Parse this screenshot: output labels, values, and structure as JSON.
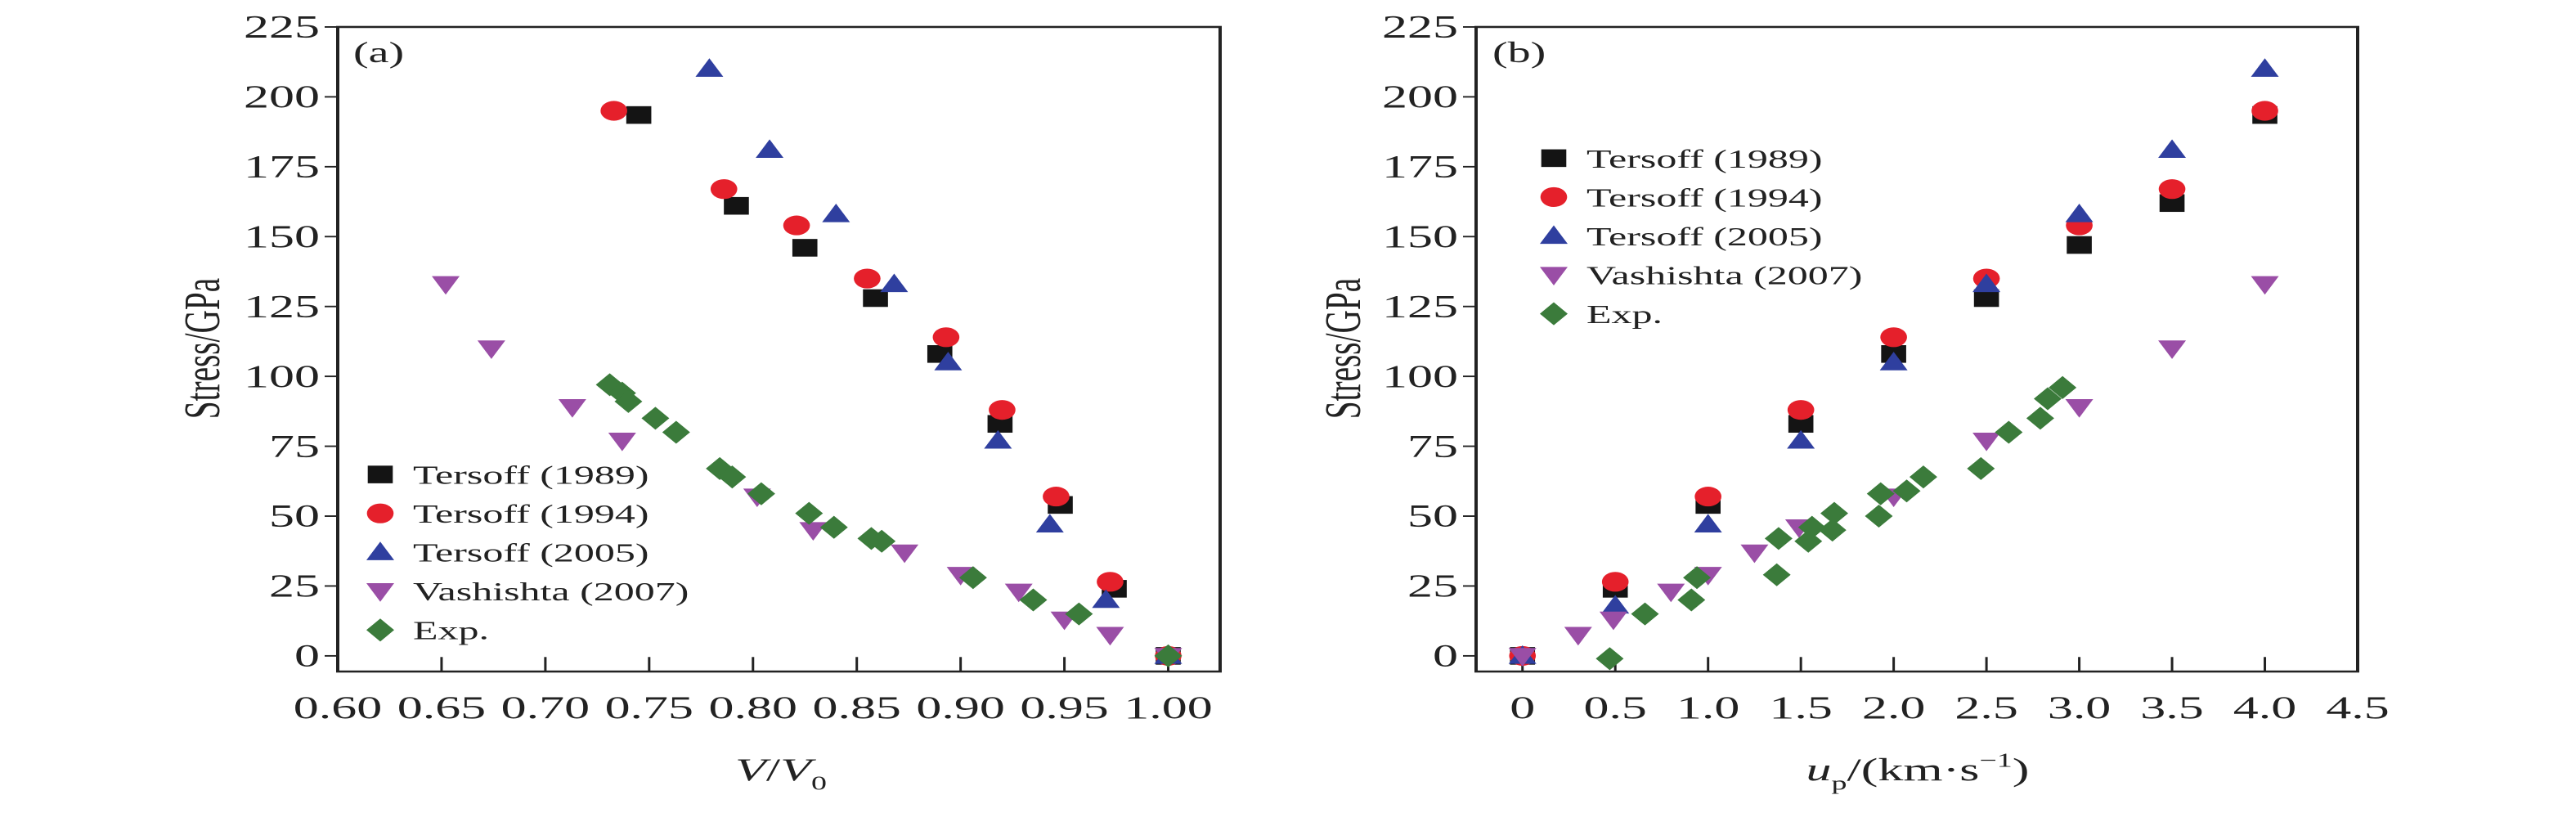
{
  "colors": {
    "Tersoff (1989)": "#141414",
    "Tersoff (1994)": "#e5202b",
    "Tersoff (2005)": "#2f3f9f",
    "Vashishta (2007)": "#9a4ea6",
    "Exp.": "#3b7b3b"
  },
  "markers": {
    "Tersoff (1989)": "square",
    "Tersoff (1994)": "circle",
    "Tersoff (2005)": "triangle-up",
    "Vashishta (2007)": "triangle-down",
    "Exp.": "diamond"
  },
  "chart_data": [
    {
      "type": "scatter",
      "panel_label": "(a)",
      "xlabel_main": "V",
      "xlabel_sep": "/",
      "xlabel_v": "V",
      "xlabel_sub": "0",
      "ylabel": "Stress/GPa",
      "xlim": [
        0.6,
        1.025
      ],
      "ylim": [
        -5.6,
        225
      ],
      "xticks": [
        "0.60",
        "0.65",
        "0.70",
        "0.75",
        "0.80",
        "0.85",
        "0.90",
        "0.95",
        "1.00"
      ],
      "yticks": [
        "0",
        "25",
        "50",
        "75",
        "100",
        "125",
        "150",
        "175",
        "200",
        "225"
      ],
      "legend_position": "lower-left",
      "series": [
        {
          "name": "Tersoff (1989)",
          "x": [
            0.745,
            0.792,
            0.825,
            0.859,
            0.89,
            0.919,
            0.948,
            0.974,
            1.0
          ],
          "y": [
            193.5,
            161,
            146,
            128,
            108,
            83,
            54,
            24,
            0
          ]
        },
        {
          "name": "Tersoff (1994)",
          "x": [
            0.733,
            0.786,
            0.821,
            0.855,
            0.893,
            0.92,
            0.946,
            0.972,
            1.0
          ],
          "y": [
            195,
            167,
            154,
            135,
            114,
            88,
            57,
            26.5,
            0
          ]
        },
        {
          "name": "Tersoff (2005)",
          "x": [
            0.779,
            0.808,
            0.84,
            0.868,
            0.894,
            0.918,
            0.943,
            0.97,
            1.0
          ],
          "y": [
            210,
            181,
            158,
            133,
            105,
            77,
            47,
            20,
            0
          ]
        },
        {
          "name": "Vashishta (2007)",
          "x": [
            0.652,
            0.674,
            0.713,
            0.737,
            0.802,
            0.829,
            0.873,
            0.9,
            0.928,
            0.95,
            0.972,
            1.0
          ],
          "y": [
            133,
            110,
            89,
            77,
            57,
            45,
            37,
            29,
            23,
            13,
            7.5,
            0
          ]
        },
        {
          "name": "Exp.",
          "x": [
            0.731,
            0.737,
            0.74,
            0.753,
            0.763,
            0.784,
            0.79,
            0.804,
            0.827,
            0.839,
            0.857,
            0.862,
            0.906,
            0.935,
            0.957,
            1.0
          ],
          "y": [
            97,
            94,
            91,
            85,
            80,
            67,
            64,
            58,
            51,
            46,
            42,
            41,
            28,
            20,
            15,
            0
          ]
        }
      ]
    },
    {
      "type": "scatter",
      "panel_label": "(b)",
      "xlabel_main": "u",
      "xlabel_sub": "p",
      "xlabel_rest": "/(km·s",
      "xlabel_sup": "−1",
      "xlabel_close": ")",
      "ylabel": "Stress/GPa",
      "xlim": [
        -0.25,
        4.5
      ],
      "ylim": [
        -5.6,
        225
      ],
      "xticks": [
        "0",
        "0.5",
        "1.0",
        "1.5",
        "2.0",
        "2.5",
        "3.0",
        "3.5",
        "4.0",
        "4.5"
      ],
      "yticks": [
        "0",
        "25",
        "50",
        "75",
        "100",
        "125",
        "150",
        "175",
        "200",
        "225"
      ],
      "legend_position": "upper-left",
      "series": [
        {
          "name": "Tersoff (1989)",
          "x": [
            0,
            0.5,
            1.0,
            1.5,
            2.0,
            2.5,
            3.0,
            3.5,
            4.0
          ],
          "y": [
            0,
            24,
            54,
            83,
            108,
            128,
            147,
            162,
            193.5
          ]
        },
        {
          "name": "Tersoff (1994)",
          "x": [
            0,
            0.5,
            1.0,
            1.5,
            2.0,
            2.5,
            3.0,
            3.5,
            4.0
          ],
          "y": [
            0,
            26.5,
            57,
            88,
            114,
            135,
            154,
            167,
            195
          ]
        },
        {
          "name": "Tersoff (2005)",
          "x": [
            0,
            0.5,
            1.0,
            1.5,
            2.0,
            2.5,
            3.0,
            3.5,
            4.0
          ],
          "y": [
            0,
            18,
            47,
            77,
            105,
            133,
            158,
            181,
            210
          ]
        },
        {
          "name": "Vashishta (2007)",
          "x": [
            0,
            0.3,
            0.49,
            0.8,
            1.0,
            1.25,
            1.49,
            2.0,
            2.5,
            3.0,
            3.5,
            4.0
          ],
          "y": [
            0,
            7.5,
            13,
            23,
            29,
            37,
            46,
            57,
            77,
            89,
            110,
            133
          ]
        },
        {
          "name": "Exp.",
          "x": [
            0.47,
            0.66,
            0.91,
            0.94,
            1.37,
            1.38,
            1.54,
            1.56,
            1.67,
            1.68,
            1.92,
            1.93,
            2.07,
            2.16,
            2.47,
            2.62,
            2.79,
            2.83,
            2.91
          ],
          "y": [
            -1,
            15,
            20,
            28,
            29,
            42,
            41,
            46,
            45,
            51,
            50,
            58,
            59,
            64,
            67,
            80,
            85,
            92,
            96
          ]
        }
      ]
    }
  ]
}
